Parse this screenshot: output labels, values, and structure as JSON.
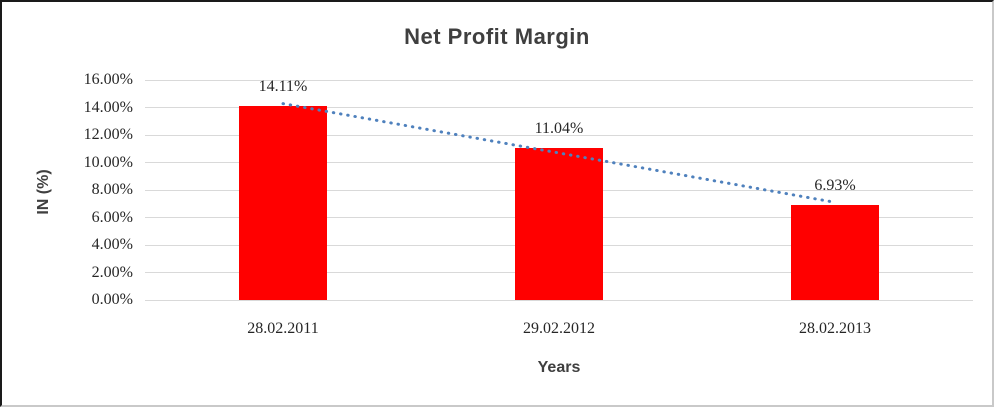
{
  "chart_data": {
    "type": "bar",
    "title": "Net Profit Margin",
    "xlabel": "Years",
    "ylabel": "IN (%)",
    "categories": [
      "28.02.2011",
      "29.02.2012",
      "28.02.2013"
    ],
    "values": [
      14.11,
      11.04,
      6.93
    ],
    "data_labels": [
      "14.11%",
      "11.04%",
      "6.93%"
    ],
    "ylim": [
      0,
      16
    ],
    "yticks": [
      "0.00%",
      "2.00%",
      "4.00%",
      "6.00%",
      "8.00%",
      "10.00%",
      "12.00%",
      "14.00%",
      "16.00%"
    ],
    "grid": true,
    "legend": "none",
    "bar_color": "#ff0000",
    "gridline_color": "#d9d9d9",
    "tick_label_color": "#262626",
    "title_color": "#3f3f3f",
    "trendline": {
      "style": "dotted",
      "color": "#4f81bd"
    }
  }
}
